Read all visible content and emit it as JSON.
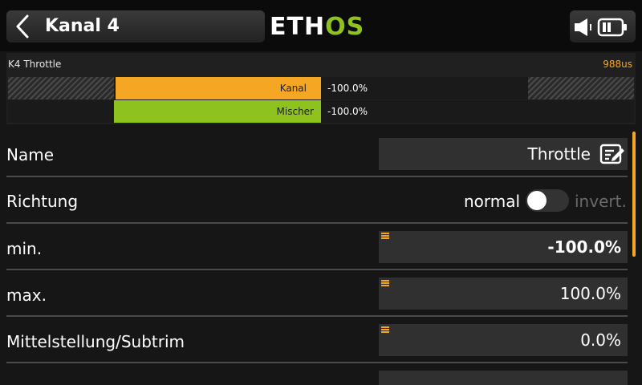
{
  "header": {
    "back_icon": "chevron-left-icon",
    "title": "Kanal 4",
    "logo": {
      "part1": "ETH",
      "part2": "OS",
      "color1": "#ffffff",
      "color2": "#8dc21f"
    },
    "status_icons": [
      "speaker-icon",
      "battery-icon"
    ]
  },
  "monitor": {
    "channel_label": "K4 Throttle",
    "value": "988us",
    "bars": [
      {
        "label": "Kanal",
        "percent": "-100.0%",
        "color": "#f5a623",
        "level": -1.0
      },
      {
        "label": "Mischer",
        "percent": "-100.0%",
        "color": "#8dc21f",
        "level": -1.0
      }
    ]
  },
  "form": {
    "name": {
      "label": "Name",
      "value": "Throttle",
      "icon": "edit-icon"
    },
    "direction": {
      "label": "Richtung",
      "option_off": "normal",
      "option_on": "invert.",
      "on": false
    },
    "min": {
      "label": "min.",
      "value": "-100.0%"
    },
    "max": {
      "label": "max.",
      "value": "100.0%"
    },
    "subtrim": {
      "label": "Mittelstellung/Subtrim",
      "value": "0.0%"
    }
  },
  "colors": {
    "accent": "#f5a623",
    "brand_green": "#8dc21f",
    "background": "#161616",
    "field": "#303030"
  }
}
